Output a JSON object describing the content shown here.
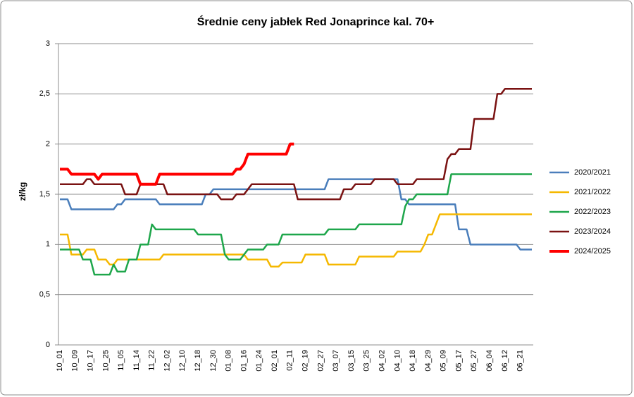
{
  "chart_data": {
    "type": "line",
    "title": "Średnie ceny jabłek Red Jonaprince kal. 70+",
    "y_label": "zł/kg",
    "ylim": [
      0,
      3
    ],
    "yticks": [
      0,
      {
        "value": 0.5,
        "label": "0,5"
      },
      1,
      {
        "value": 1.5,
        "label": "1,5"
      },
      2,
      {
        "value": 2.5,
        "label": "2,5"
      },
      3
    ],
    "grid": true,
    "legend": "right",
    "categories": [
      "10_01",
      null,
      null,
      null,
      "10_09",
      null,
      null,
      null,
      "10_17",
      null,
      null,
      null,
      "10_25",
      null,
      null,
      null,
      "11_05",
      null,
      null,
      null,
      "11_14",
      null,
      null,
      null,
      "11_22",
      null,
      null,
      null,
      "12_02",
      null,
      null,
      null,
      "12_10",
      null,
      null,
      null,
      "12_18",
      null,
      null,
      null,
      "12_30",
      null,
      null,
      null,
      "01_08",
      null,
      null,
      null,
      "01_16",
      null,
      null,
      null,
      "01_24",
      null,
      null,
      null,
      "02_01",
      null,
      null,
      null,
      "02_11",
      null,
      null,
      null,
      "02_19",
      null,
      null,
      null,
      "02_27",
      null,
      null,
      null,
      "03_07",
      null,
      null,
      null,
      "03_15",
      null,
      null,
      null,
      "03_25",
      null,
      null,
      null,
      "04_02",
      null,
      null,
      null,
      "04_10",
      null,
      null,
      null,
      "04_18",
      null,
      null,
      null,
      "04_29",
      null,
      null,
      null,
      "05_09",
      null,
      null,
      null,
      "05_17",
      null,
      null,
      null,
      "05_27",
      null,
      null,
      null,
      "06_04",
      null,
      null,
      null,
      "06_12",
      null,
      null,
      null,
      "06_21",
      null,
      null,
      null
    ],
    "series": [
      {
        "name": "2020/2021",
        "color": "#4a7ebb",
        "width": 2.5,
        "values": [
          1.45,
          1.45,
          1.45,
          1.35,
          1.35,
          1.35,
          1.35,
          1.35,
          1.35,
          1.35,
          1.35,
          1.35,
          1.35,
          1.35,
          1.35,
          1.4,
          1.4,
          1.45,
          1.45,
          1.45,
          1.45,
          1.45,
          1.45,
          1.45,
          1.45,
          1.45,
          1.4,
          1.4,
          1.4,
          1.4,
          1.4,
          1.4,
          1.4,
          1.4,
          1.4,
          1.4,
          1.4,
          1.4,
          1.5,
          1.5,
          1.55,
          1.55,
          1.55,
          1.55,
          1.55,
          1.55,
          1.55,
          1.55,
          1.55,
          1.55,
          1.55,
          1.55,
          1.55,
          1.55,
          1.55,
          1.55,
          1.55,
          1.55,
          1.55,
          1.55,
          1.55,
          1.55,
          1.55,
          1.55,
          1.55,
          1.55,
          1.55,
          1.55,
          1.55,
          1.55,
          1.65,
          1.65,
          1.65,
          1.65,
          1.65,
          1.65,
          1.65,
          1.65,
          1.65,
          1.65,
          1.65,
          1.65,
          1.65,
          1.65,
          1.65,
          1.65,
          1.65,
          1.65,
          1.65,
          1.45,
          1.45,
          1.4,
          1.4,
          1.4,
          1.4,
          1.4,
          1.4,
          1.4,
          1.4,
          1.4,
          1.4,
          1.4,
          1.4,
          1.4,
          1.15,
          1.15,
          1.15,
          1,
          1,
          1,
          1,
          1,
          1,
          1,
          1,
          1,
          1,
          1,
          1,
          1,
          0.95,
          0.95,
          0.95,
          0.95
        ]
      },
      {
        "name": "2021/2022",
        "color": "#f5b800",
        "width": 2.5,
        "values": [
          1.1,
          1.1,
          1.1,
          0.9,
          0.9,
          0.9,
          0.9,
          0.95,
          0.95,
          0.95,
          0.85,
          0.85,
          0.85,
          0.8,
          0.8,
          0.85,
          0.85,
          0.85,
          0.85,
          0.85,
          0.85,
          0.85,
          0.85,
          0.85,
          0.85,
          0.85,
          0.85,
          0.9,
          0.9,
          0.9,
          0.9,
          0.9,
          0.9,
          0.9,
          0.9,
          0.9,
          0.9,
          0.9,
          0.9,
          0.9,
          0.9,
          0.9,
          0.9,
          0.9,
          0.9,
          0.9,
          0.9,
          0.9,
          0.9,
          0.85,
          0.85,
          0.85,
          0.85,
          0.85,
          0.85,
          0.78,
          0.78,
          0.78,
          0.82,
          0.82,
          0.82,
          0.82,
          0.82,
          0.82,
          0.9,
          0.9,
          0.9,
          0.9,
          0.9,
          0.9,
          0.8,
          0.8,
          0.8,
          0.8,
          0.8,
          0.8,
          0.8,
          0.8,
          0.88,
          0.88,
          0.88,
          0.88,
          0.88,
          0.88,
          0.88,
          0.88,
          0.88,
          0.88,
          0.93,
          0.93,
          0.93,
          0.93,
          0.93,
          0.93,
          0.93,
          1,
          1.1,
          1.1,
          1.2,
          1.3,
          1.3,
          1.3,
          1.3,
          1.3,
          1.3,
          1.3,
          1.3,
          1.3,
          1.3,
          1.3,
          1.3,
          1.3,
          1.3,
          1.3,
          1.3,
          1.3,
          1.3,
          1.3,
          1.3,
          1.3,
          1.3,
          1.3,
          1.3,
          1.3
        ]
      },
      {
        "name": "2022/2023",
        "color": "#1ea64b",
        "width": 2.5,
        "values": [
          0.95,
          0.95,
          0.95,
          0.95,
          0.95,
          0.95,
          0.85,
          0.85,
          0.85,
          0.7,
          0.7,
          0.7,
          0.7,
          0.7,
          0.8,
          0.73,
          0.73,
          0.73,
          0.85,
          0.85,
          0.85,
          1,
          1,
          1,
          1.2,
          1.15,
          1.15,
          1.15,
          1.15,
          1.15,
          1.15,
          1.15,
          1.15,
          1.15,
          1.15,
          1.15,
          1.1,
          1.1,
          1.1,
          1.1,
          1.1,
          1.1,
          1.1,
          0.9,
          0.85,
          0.85,
          0.85,
          0.85,
          0.9,
          0.95,
          0.95,
          0.95,
          0.95,
          0.95,
          1,
          1,
          1,
          1,
          1.1,
          1.1,
          1.1,
          1.1,
          1.1,
          1.1,
          1.1,
          1.1,
          1.1,
          1.1,
          1.1,
          1.1,
          1.15,
          1.15,
          1.15,
          1.15,
          1.15,
          1.15,
          1.15,
          1.15,
          1.2,
          1.2,
          1.2,
          1.2,
          1.2,
          1.2,
          1.2,
          1.2,
          1.2,
          1.2,
          1.2,
          1.2,
          1.38,
          1.45,
          1.45,
          1.5,
          1.5,
          1.5,
          1.5,
          1.5,
          1.5,
          1.5,
          1.5,
          1.5,
          1.7,
          1.7,
          1.7,
          1.7,
          1.7,
          1.7,
          1.7,
          1.7,
          1.7,
          1.7,
          1.7,
          1.7,
          1.7,
          1.7,
          1.7,
          1.7,
          1.7,
          1.7,
          1.7,
          1.7,
          1.7,
          1.7
        ]
      },
      {
        "name": "2023/2024",
        "color": "#7a1212",
        "width": 2.5,
        "values": [
          1.6,
          1.6,
          1.6,
          1.6,
          1.6,
          1.6,
          1.6,
          1.65,
          1.65,
          1.6,
          1.6,
          1.6,
          1.6,
          1.6,
          1.6,
          1.6,
          1.6,
          1.5,
          1.5,
          1.5,
          1.5,
          1.6,
          1.6,
          1.6,
          1.6,
          1.6,
          1.6,
          1.6,
          1.5,
          1.5,
          1.5,
          1.5,
          1.5,
          1.5,
          1.5,
          1.5,
          1.5,
          1.5,
          1.5,
          1.5,
          1.5,
          1.5,
          1.45,
          1.45,
          1.45,
          1.45,
          1.5,
          1.5,
          1.5,
          1.55,
          1.6,
          1.6,
          1.6,
          1.6,
          1.6,
          1.6,
          1.6,
          1.6,
          1.6,
          1.6,
          1.6,
          1.6,
          1.45,
          1.45,
          1.45,
          1.45,
          1.45,
          1.45,
          1.45,
          1.45,
          1.45,
          1.45,
          1.45,
          1.45,
          1.55,
          1.55,
          1.55,
          1.6,
          1.6,
          1.6,
          1.6,
          1.6,
          1.65,
          1.65,
          1.65,
          1.65,
          1.65,
          1.65,
          1.6,
          1.6,
          1.6,
          1.6,
          1.6,
          1.65,
          1.65,
          1.65,
          1.65,
          1.65,
          1.65,
          1.65,
          1.65,
          1.85,
          1.9,
          1.9,
          1.95,
          1.95,
          1.95,
          1.95,
          2.25,
          2.25,
          2.25,
          2.25,
          2.25,
          2.25,
          2.5,
          2.5,
          2.55,
          2.55,
          2.55,
          2.55,
          2.55,
          2.55,
          2.55,
          2.55
        ]
      },
      {
        "name": "2024/2025",
        "color": "#ff0000",
        "width": 4,
        "values": [
          1.75,
          1.75,
          1.75,
          1.7,
          1.7,
          1.7,
          1.7,
          1.7,
          1.7,
          1.7,
          1.65,
          1.7,
          1.7,
          1.7,
          1.7,
          1.7,
          1.7,
          1.7,
          1.7,
          1.7,
          1.7,
          1.6,
          1.6,
          1.6,
          1.6,
          1.6,
          1.7,
          1.7,
          1.7,
          1.7,
          1.7,
          1.7,
          1.7,
          1.7,
          1.7,
          1.7,
          1.7,
          1.7,
          1.7,
          1.7,
          1.7,
          1.7,
          1.7,
          1.7,
          1.7,
          1.7,
          1.75,
          1.75,
          1.8,
          1.9,
          1.9,
          1.9,
          1.9,
          1.9,
          1.9,
          1.9,
          1.9,
          1.9,
          1.9,
          1.9,
          2,
          2,
          null,
          null,
          null,
          null,
          null,
          null,
          null,
          null,
          null,
          null,
          null,
          null,
          null,
          null,
          null,
          null,
          null,
          null,
          null,
          null,
          null,
          null,
          null,
          null,
          null,
          null,
          null,
          null,
          null,
          null,
          null,
          null,
          null,
          null,
          null,
          null,
          null,
          null,
          null,
          null,
          null,
          null,
          null,
          null,
          null,
          null,
          null,
          null,
          null,
          null,
          null,
          null,
          null,
          null,
          null,
          null,
          null,
          null,
          null,
          null,
          null,
          null
        ]
      }
    ]
  }
}
